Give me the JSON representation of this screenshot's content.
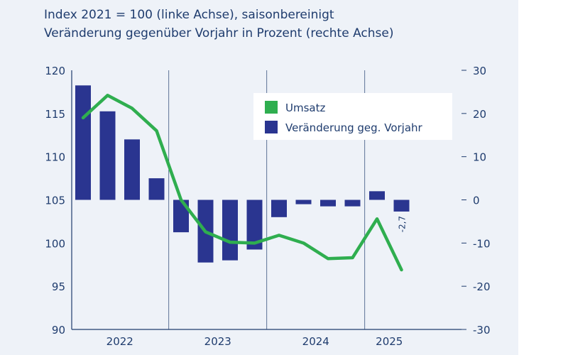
{
  "subtitle_line1": "Index 2021 = 100 (linke Achse), saisonbereinigt",
  "subtitle_line2": "Veränderung gegenüber Vorjahr in Prozent (rechte Achse)",
  "colors": {
    "background": "#eef2f8",
    "bars": "#2a3590",
    "line": "#2fae4f",
    "text": "#1f3c6e",
    "grid": "#1f3c6e"
  },
  "chart_data": {
    "type": "bar+line",
    "x_labels": [
      "2022",
      "2023",
      "2024",
      "2025"
    ],
    "quarters": [
      "2022 Q1",
      "2022 Q2",
      "2022 Q3",
      "2022 Q4",
      "2023 Q1",
      "2023 Q2",
      "2023 Q3",
      "2023 Q4",
      "2024 Q1",
      "2024 Q2",
      "2024 Q3",
      "2024 Q4",
      "2025 Q1",
      "2025 Q2"
    ],
    "y_left": {
      "label": "Index 2021 = 100",
      "ylim": [
        90,
        120
      ],
      "ticks": [
        90,
        95,
        100,
        105,
        110,
        115,
        120
      ]
    },
    "y_right": {
      "label": "Veränderung gegenüber Vorjahr in Prozent",
      "ylim": [
        -30,
        30
      ],
      "ticks": [
        -30,
        -20,
        -10,
        0,
        10,
        20,
        30
      ]
    },
    "legend": {
      "position": "top-right",
      "entries": [
        {
          "label": "Umsatz",
          "color": "#2fae4f"
        },
        {
          "label": "Veränderung geg. Vorjahr",
          "color": "#2a3590"
        }
      ]
    },
    "series": [
      {
        "name": "Umsatz",
        "kind": "line",
        "axis": "left",
        "values": [
          114.5,
          117.1,
          115.6,
          113.0,
          105.0,
          101.3,
          100.1,
          100.0,
          100.9,
          100.0,
          98.2,
          98.3,
          102.8,
          96.9
        ]
      },
      {
        "name": "Veränderung geg. Vorjahr",
        "kind": "bar",
        "axis": "right",
        "values": [
          26.5,
          20.5,
          14.0,
          5.0,
          -7.5,
          -14.5,
          -14.0,
          -11.5,
          -4.0,
          -1.0,
          -1.5,
          -1.5,
          2.0,
          -2.7
        ]
      }
    ],
    "annotations": [
      {
        "series": "Veränderung geg. Vorjahr",
        "index": 13,
        "text": "-2,7"
      }
    ],
    "grid": {
      "vertical_year_lines": true,
      "horizontal": false
    }
  }
}
